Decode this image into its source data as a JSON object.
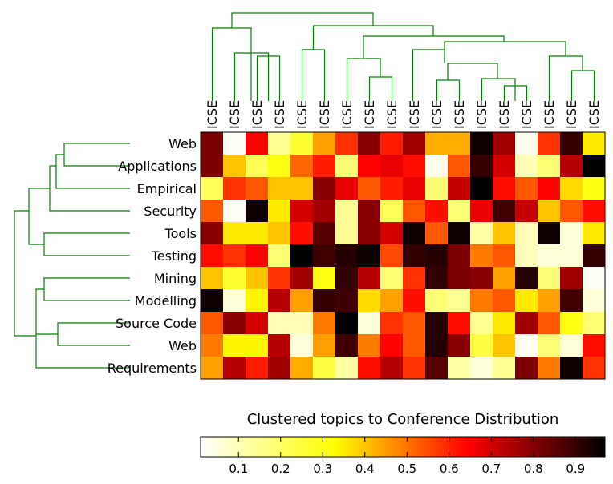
{
  "chart_data": {
    "type": "heatmap",
    "title": "Clustered topics to Conference Distribution",
    "columns": [
      "ICSE",
      "ICSE",
      "ICSE",
      "ICSE",
      "ICSE",
      "ICSE",
      "ICSE",
      "ICSE",
      "ICSE",
      "ICSE",
      "ICSE",
      "ICSE",
      "ICSE",
      "ICSE",
      "ICSE",
      "ICSE",
      "ICSE",
      "ICSE"
    ],
    "rows": [
      "Web",
      "Applications",
      "Empirical",
      "Security",
      "Tools",
      "Testing",
      "Mining",
      "Modelling",
      "Source Code",
      "Web",
      "Requirements"
    ],
    "values": [
      [
        0.8,
        0.02,
        0.62,
        0.12,
        0.22,
        0.4,
        0.55,
        0.78,
        0.58,
        0.75,
        0.38,
        0.38,
        0.95,
        0.75,
        0.03,
        0.55,
        0.9,
        0.3
      ],
      [
        0.8,
        0.35,
        0.18,
        0.25,
        0.48,
        0.58,
        0.15,
        0.62,
        0.65,
        0.6,
        0.03,
        0.5,
        0.9,
        0.68,
        0.08,
        0.15,
        0.72,
        0.98
      ],
      [
        0.18,
        0.55,
        0.5,
        0.35,
        0.35,
        0.78,
        0.65,
        0.5,
        0.58,
        0.65,
        0.15,
        0.7,
        0.98,
        0.6,
        0.5,
        0.62,
        0.32,
        0.25
      ],
      [
        0.5,
        0.02,
        0.95,
        0.3,
        0.68,
        0.75,
        0.12,
        0.78,
        0.18,
        0.5,
        0.6,
        0.15,
        0.65,
        0.88,
        0.7,
        0.35,
        0.5,
        0.6
      ],
      [
        0.78,
        0.3,
        0.3,
        0.35,
        0.6,
        0.85,
        0.12,
        0.78,
        0.68,
        0.95,
        0.5,
        0.95,
        0.1,
        0.35,
        0.08,
        0.95,
        0.05,
        0.3
      ],
      [
        0.6,
        0.55,
        0.62,
        0.15,
        0.98,
        0.88,
        0.92,
        0.95,
        0.52,
        0.9,
        0.92,
        0.8,
        0.45,
        0.5,
        0.08,
        0.05,
        0.05,
        0.9
      ],
      [
        0.35,
        0.22,
        0.35,
        0.55,
        0.75,
        0.25,
        0.9,
        0.72,
        0.15,
        0.55,
        0.9,
        0.8,
        0.78,
        0.4,
        0.92,
        0.15,
        0.75,
        0.02
      ],
      [
        0.95,
        0.05,
        0.28,
        0.72,
        0.4,
        0.9,
        0.88,
        0.32,
        0.4,
        0.6,
        0.15,
        0.12,
        0.45,
        0.5,
        0.3,
        0.4,
        0.88,
        0.05
      ],
      [
        0.5,
        0.78,
        0.68,
        0.08,
        0.08,
        0.45,
        0.98,
        0.05,
        0.55,
        0.5,
        0.92,
        0.6,
        0.12,
        0.3,
        0.75,
        0.5,
        0.25,
        0.15
      ],
      [
        0.45,
        0.28,
        0.28,
        0.72,
        0.05,
        0.4,
        0.88,
        0.45,
        0.62,
        0.5,
        0.92,
        0.78,
        0.2,
        0.35,
        0.02,
        0.15,
        0.05,
        0.6
      ],
      [
        0.4,
        0.72,
        0.58,
        0.75,
        0.38,
        0.2,
        0.1,
        0.6,
        0.72,
        0.55,
        0.85,
        0.1,
        0.05,
        0.12,
        0.8,
        0.45,
        0.95,
        0.55
      ]
    ],
    "colormap": "hot_r",
    "colorbar": {
      "ticks": [
        0.1,
        0.2,
        0.3,
        0.4,
        0.5,
        0.6,
        0.7,
        0.8,
        0.9
      ],
      "range": [
        0.01,
        0.97
      ],
      "orientation": "horizontal"
    }
  }
}
